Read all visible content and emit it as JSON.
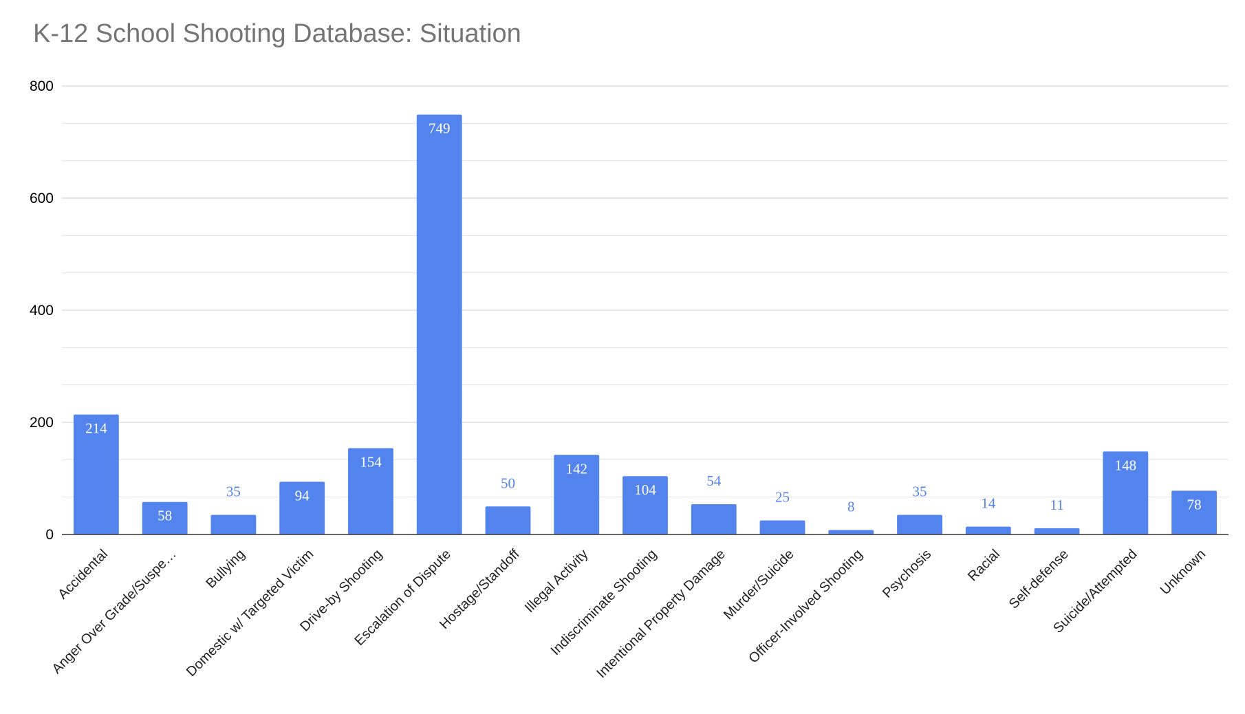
{
  "chart_data": {
    "type": "bar",
    "title": "K-12 School Shooting Database: Situation",
    "xlabel": "",
    "ylabel": "",
    "ylim": [
      0,
      800
    ],
    "yticks": [
      0,
      200,
      400,
      600,
      800
    ],
    "grid": true,
    "legend": "none",
    "categories": [
      "Accidental",
      "Anger Over Grade/Suspe…",
      "Bullying",
      "Domestic w/ Targeted Victim",
      "Drive-by Shooting",
      "Escalation of Dispute",
      "Hostage/Standoff",
      "Illegal Activity",
      "Indiscriminate Shooting",
      "Intentional Property Damage",
      "Murder/Suicide",
      "Officer-Involved Shooting",
      "Psychosis",
      "Racial",
      "Self-defense",
      "Suicide/Attempted",
      "Unknown"
    ],
    "values": [
      214,
      58,
      35,
      94,
      154,
      749,
      50,
      142,
      104,
      54,
      25,
      8,
      35,
      14,
      11,
      148,
      78
    ]
  },
  "colors": {
    "bar": "#5384ed",
    "label_inside": "#ffffff",
    "label_outside": "#5384ed",
    "gridline": "#cccccc",
    "minor_gridline": "#e3e3e3",
    "axis": "#333333",
    "title": "#757575"
  }
}
